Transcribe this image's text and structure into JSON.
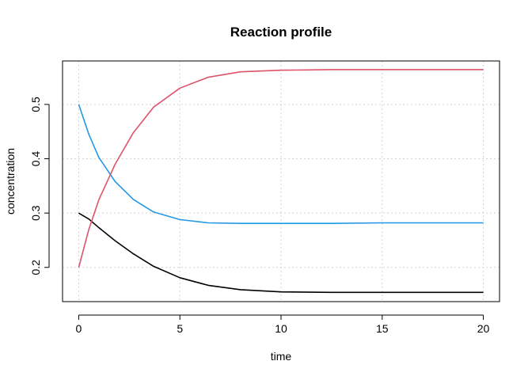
{
  "chart_data": {
    "type": "line",
    "title": "Reaction profile",
    "xlabel": "time",
    "ylabel": "concentration",
    "xlim": [
      -0.8,
      20.8
    ],
    "ylim": [
      0.137,
      0.58
    ],
    "xticks": [
      0,
      5,
      10,
      15,
      20
    ],
    "yticks": [
      0.2,
      0.3,
      0.4,
      0.5
    ],
    "grid": true,
    "series": [
      {
        "color": "#000000",
        "x": [
          0,
          0.5,
          1,
          1.8,
          2.7,
          3.7,
          5,
          6.4,
          8,
          10,
          12.5,
          15,
          17.5,
          20
        ],
        "y": [
          0.3,
          0.289,
          0.273,
          0.249,
          0.225,
          0.202,
          0.181,
          0.167,
          0.159,
          0.155,
          0.154,
          0.154,
          0.154,
          0.154
        ]
      },
      {
        "color": "#2297E6",
        "x": [
          0,
          0.5,
          1,
          1.8,
          2.7,
          3.7,
          5,
          6.4,
          8,
          10,
          12.5,
          15,
          17.5,
          20
        ],
        "y": [
          0.5,
          0.445,
          0.402,
          0.358,
          0.325,
          0.302,
          0.288,
          0.282,
          0.281,
          0.281,
          0.281,
          0.282,
          0.282,
          0.282
        ]
      },
      {
        "color": "#DF536B",
        "x": [
          0,
          0.5,
          1,
          1.8,
          2.7,
          3.7,
          5,
          6.4,
          8,
          10,
          12.5,
          15,
          17.5,
          20
        ],
        "y": [
          0.2,
          0.27,
          0.325,
          0.39,
          0.448,
          0.495,
          0.53,
          0.55,
          0.56,
          0.563,
          0.564,
          0.564,
          0.564,
          0.564
        ]
      }
    ]
  }
}
